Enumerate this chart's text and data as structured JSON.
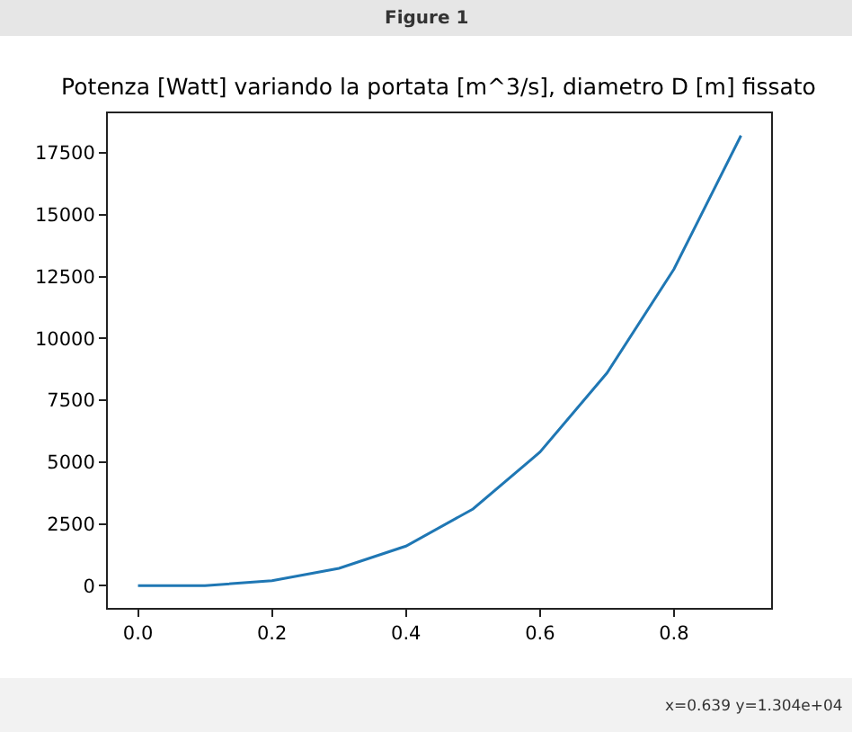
{
  "chart_data": {
    "type": "line",
    "title": "Potenza [Watt] variando la portata [m^3/s], diametro D [m] fissato",
    "x": [
      0.0,
      0.1,
      0.2,
      0.3,
      0.4,
      0.5,
      0.6,
      0.7,
      0.8,
      0.9
    ],
    "series": [
      {
        "color": "#1f77b4",
        "values": [
          0,
          0,
          200,
          700,
          1600,
          3100,
          5400,
          8600,
          12800,
          18200
        ]
      }
    ],
    "xlim": [
      -0.045,
      0.945
    ],
    "ylim": [
      -900,
      19100
    ],
    "xticks": [
      {
        "value": 0.0,
        "label": "0.0"
      },
      {
        "value": 0.2,
        "label": "0.2"
      },
      {
        "value": 0.4,
        "label": "0.4"
      },
      {
        "value": 0.6,
        "label": "0.6"
      },
      {
        "value": 0.8,
        "label": "0.8"
      }
    ],
    "yticks": [
      0,
      2500,
      5000,
      7500,
      10000,
      12500,
      15000,
      17500
    ],
    "grid": false,
    "marker": "none",
    "line_style": "solid",
    "annotations": [
      "Figure 1",
      "x=0.639 y=1.304e+04"
    ]
  }
}
